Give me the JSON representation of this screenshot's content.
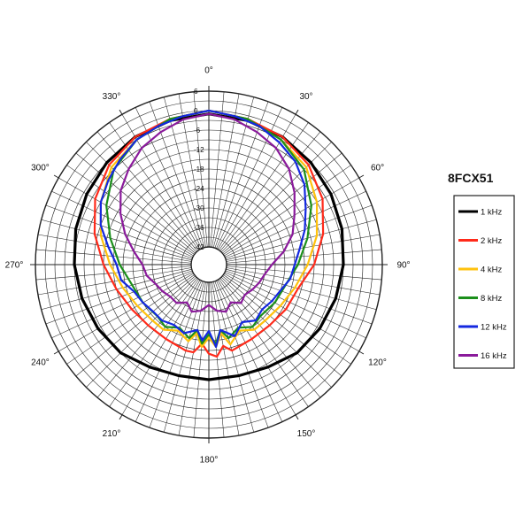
{
  "chart_data": {
    "type": "polar",
    "title": "8FCX51",
    "angle_unit": "degrees",
    "angle_ticks": [
      {
        "angle": 0,
        "label": "0°"
      },
      {
        "angle": 30,
        "label": "30°"
      },
      {
        "angle": 60,
        "label": "60°"
      },
      {
        "angle": 90,
        "label": "90°"
      },
      {
        "angle": 120,
        "label": "120°"
      },
      {
        "angle": 150,
        "label": "150°"
      },
      {
        "angle": 180,
        "label": "180°"
      },
      {
        "angle": 210,
        "label": "210°"
      },
      {
        "angle": 240,
        "label": "240°"
      },
      {
        "angle": 270,
        "label": "270°"
      },
      {
        "angle": 300,
        "label": "300°"
      },
      {
        "angle": 330,
        "label": "330°"
      }
    ],
    "radial_range_db": [
      -42,
      6
    ],
    "radial_ticks": [
      "6",
      "0",
      "-6",
      "-12",
      "-18",
      "-24",
      "-30",
      "-36",
      "-42"
    ],
    "grid": true,
    "legend_position": "right",
    "series": [
      {
        "name": "1 kHz",
        "color": "#000000",
        "angles": [
          0,
          15,
          30,
          45,
          60,
          75,
          90,
          105,
          120,
          135,
          150,
          165,
          180,
          195,
          210,
          225,
          240,
          255,
          270,
          285,
          300,
          315,
          330,
          345
        ],
        "db": [
          -1,
          -1.5,
          -2,
          -3,
          -4,
          -5,
          -6,
          -7,
          -8,
          -9,
          -11,
          -12,
          -12,
          -12,
          -11,
          -9,
          -8,
          -7,
          -6,
          -5,
          -4,
          -3,
          -2,
          -1.5
        ]
      },
      {
        "name": "2 kHz",
        "color": "#ff2a1a",
        "angles": [
          0,
          15,
          30,
          45,
          60,
          75,
          90,
          105,
          120,
          135,
          150,
          165,
          170,
          175,
          180,
          185,
          190,
          195,
          210,
          225,
          240,
          255,
          270,
          285,
          300,
          315,
          330,
          345
        ],
        "db": [
          0,
          -1,
          -2,
          -4,
          -7,
          -11,
          -15,
          -19,
          -20,
          -21,
          -21,
          -20,
          -22,
          -19,
          -20,
          -23,
          -20,
          -20,
          -21,
          -21,
          -20,
          -18,
          -15,
          -11,
          -7,
          -4,
          -2,
          -1
        ]
      },
      {
        "name": "4 kHz",
        "color": "#ffc20e",
        "angles": [
          0,
          15,
          30,
          45,
          60,
          75,
          90,
          105,
          120,
          135,
          145,
          155,
          165,
          170,
          175,
          180,
          185,
          190,
          195,
          205,
          215,
          225,
          240,
          255,
          270,
          285,
          300,
          315,
          330,
          345
        ],
        "db": [
          0,
          -1,
          -3,
          -5,
          -9,
          -13,
          -17,
          -20,
          -22,
          -23,
          -23,
          -25,
          -22,
          -26,
          -22,
          -25,
          -22,
          -26,
          -23,
          -25,
          -23,
          -23,
          -22,
          -20,
          -17,
          -13,
          -9,
          -5,
          -3,
          -1
        ]
      },
      {
        "name": "8 kHz",
        "color": "#1b8f1b",
        "angles": [
          0,
          15,
          30,
          45,
          60,
          75,
          90,
          105,
          120,
          135,
          145,
          155,
          165,
          170,
          175,
          180,
          185,
          190,
          195,
          205,
          215,
          225,
          240,
          255,
          270,
          285,
          300,
          315,
          330,
          345
        ],
        "db": [
          0,
          -1,
          -3,
          -6,
          -11,
          -16,
          -20,
          -23,
          -24,
          -25,
          -24,
          -26,
          -24,
          -27,
          -23,
          -26,
          -23,
          -27,
          -24,
          -26,
          -24,
          -25,
          -24,
          -23,
          -20,
          -16,
          -11,
          -6,
          -3,
          -1
        ]
      },
      {
        "name": "12 kHz",
        "color": "#1428e0",
        "angles": [
          0,
          10,
          20,
          30,
          40,
          50,
          60,
          70,
          80,
          90,
          100,
          110,
          120,
          130,
          140,
          150,
          160,
          170,
          175,
          180,
          185,
          190,
          200,
          210,
          220,
          230,
          240,
          250,
          260,
          270,
          280,
          290,
          300,
          310,
          320,
          330,
          340,
          350
        ],
        "db": [
          0,
          -1,
          -2,
          -4,
          -6,
          -9,
          -13,
          -16,
          -19,
          -21,
          -22,
          -24,
          -25,
          -26,
          -25,
          -27,
          -24,
          -27,
          -22,
          -27,
          -24,
          -27,
          -25,
          -26,
          -25,
          -25,
          -24,
          -23,
          -20,
          -19,
          -16,
          -12,
          -9,
          -7,
          -5,
          -3,
          -2,
          -1
        ]
      },
      {
        "name": "16 kHz",
        "color": "#8a1a9b",
        "angles": [
          0,
          10,
          20,
          30,
          40,
          50,
          60,
          70,
          80,
          90,
          100,
          110,
          120,
          130,
          140,
          150,
          160,
          170,
          180,
          190,
          200,
          210,
          220,
          230,
          240,
          250,
          260,
          270,
          280,
          290,
          300,
          310,
          320,
          330,
          340,
          350
        ],
        "db": [
          -1,
          -2,
          -4,
          -6,
          -9,
          -13,
          -17,
          -20,
          -24,
          -28,
          -30,
          -31,
          -32,
          -33,
          -32,
          -34,
          -32,
          -33,
          -35,
          -33,
          -32,
          -34,
          -32,
          -32,
          -31,
          -30,
          -28,
          -27,
          -24,
          -20,
          -16,
          -12,
          -9,
          -6,
          -4,
          -2
        ]
      }
    ]
  }
}
